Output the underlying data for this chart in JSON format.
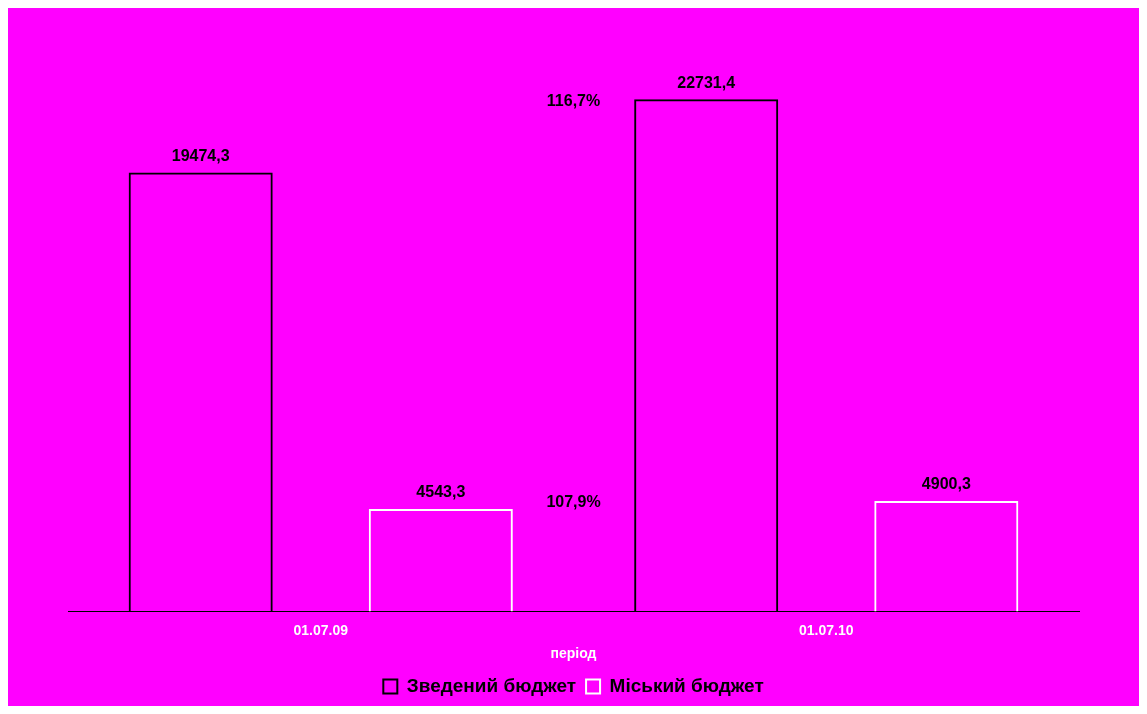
{
  "chart_data": {
    "type": "bar",
    "xlabel": "період",
    "categories": [
      "01.07.09",
      "01.07.10"
    ],
    "series": [
      {
        "name": "Зведений бюджет",
        "color": "#000000",
        "values": [
          19474.3,
          22731.4
        ],
        "value_labels": [
          "19474,3",
          "22731,4"
        ]
      },
      {
        "name": "Міський бюджет",
        "color": "#ffffff",
        "values": [
          4543.3,
          4900.3
        ],
        "value_labels": [
          "4543,3",
          "4900,3"
        ]
      }
    ],
    "annotations": [
      "116,7%",
      "107,9%"
    ],
    "tick_labels": "x",
    "grid": false,
    "legend": "bottom"
  }
}
